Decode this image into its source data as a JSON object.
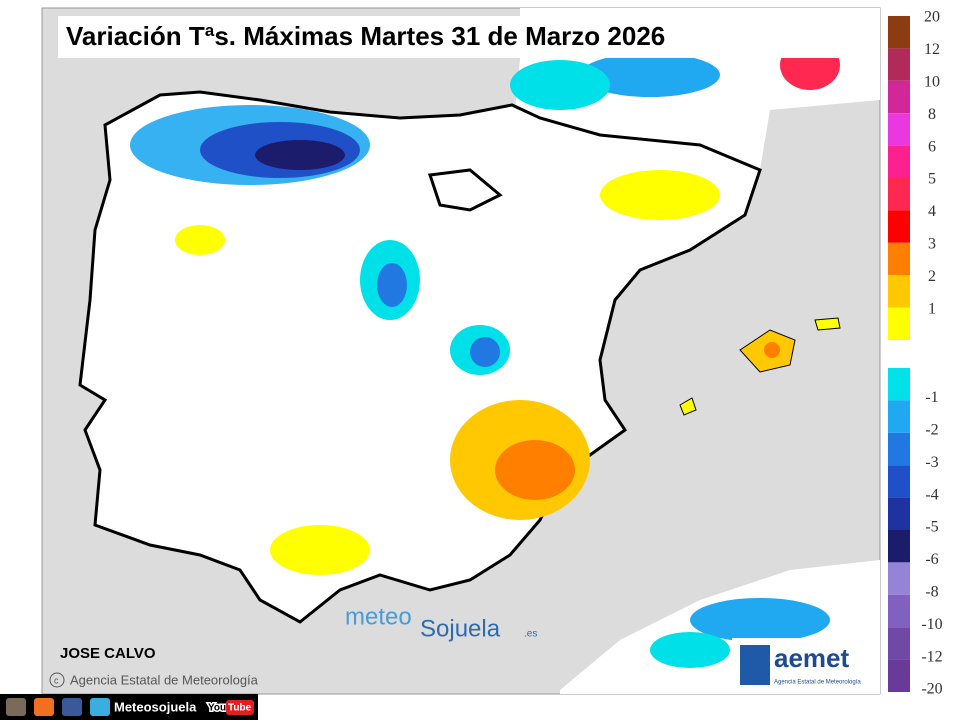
{
  "header": {
    "title": "Variación Tªs. Máximas Martes 31 de Marzo 2026"
  },
  "legend": {
    "positive": [
      {
        "label": "20",
        "color": "#8b3c10"
      },
      {
        "label": "12",
        "color": "#b02a5a"
      },
      {
        "label": "10",
        "color": "#d02898"
      },
      {
        "label": "8",
        "color": "#e838e0"
      },
      {
        "label": "6",
        "color": "#ff2090"
      },
      {
        "label": "5",
        "color": "#ff2850"
      },
      {
        "label": "4",
        "color": "#ff0000"
      },
      {
        "label": "3",
        "color": "#ff8000"
      },
      {
        "label": "2",
        "color": "#ffc800"
      },
      {
        "label": "1",
        "color": "#ffff00"
      }
    ],
    "negative": [
      {
        "label": "-1",
        "color": "#00e0e8"
      },
      {
        "label": "-2",
        "color": "#20a8f0"
      },
      {
        "label": "-3",
        "color": "#2078e0"
      },
      {
        "label": "-4",
        "color": "#2050c8"
      },
      {
        "label": "-5",
        "color": "#1e32a0"
      },
      {
        "label": "-6",
        "color": "#1c1c6c"
      },
      {
        "label": "-8",
        "color": "#9484d8"
      },
      {
        "label": "-10",
        "color": "#8060c0"
      },
      {
        "label": "-12",
        "color": "#7048a8"
      },
      {
        "label": "-20",
        "color": "#6a3a98"
      }
    ]
  },
  "credits": {
    "author": "JOSE CALVO",
    "copyright": "Agencia Estatal de Meteorología"
  },
  "watermark": {
    "first": "meteo",
    "second": "Sojuela",
    "suffix": ".es"
  },
  "logo": {
    "name": "aemet",
    "subtitle": "Agencia Estatal de Meteorología"
  },
  "footer": {
    "handle": "Meteosojuela",
    "you": "You",
    "tube": "Tube"
  }
}
